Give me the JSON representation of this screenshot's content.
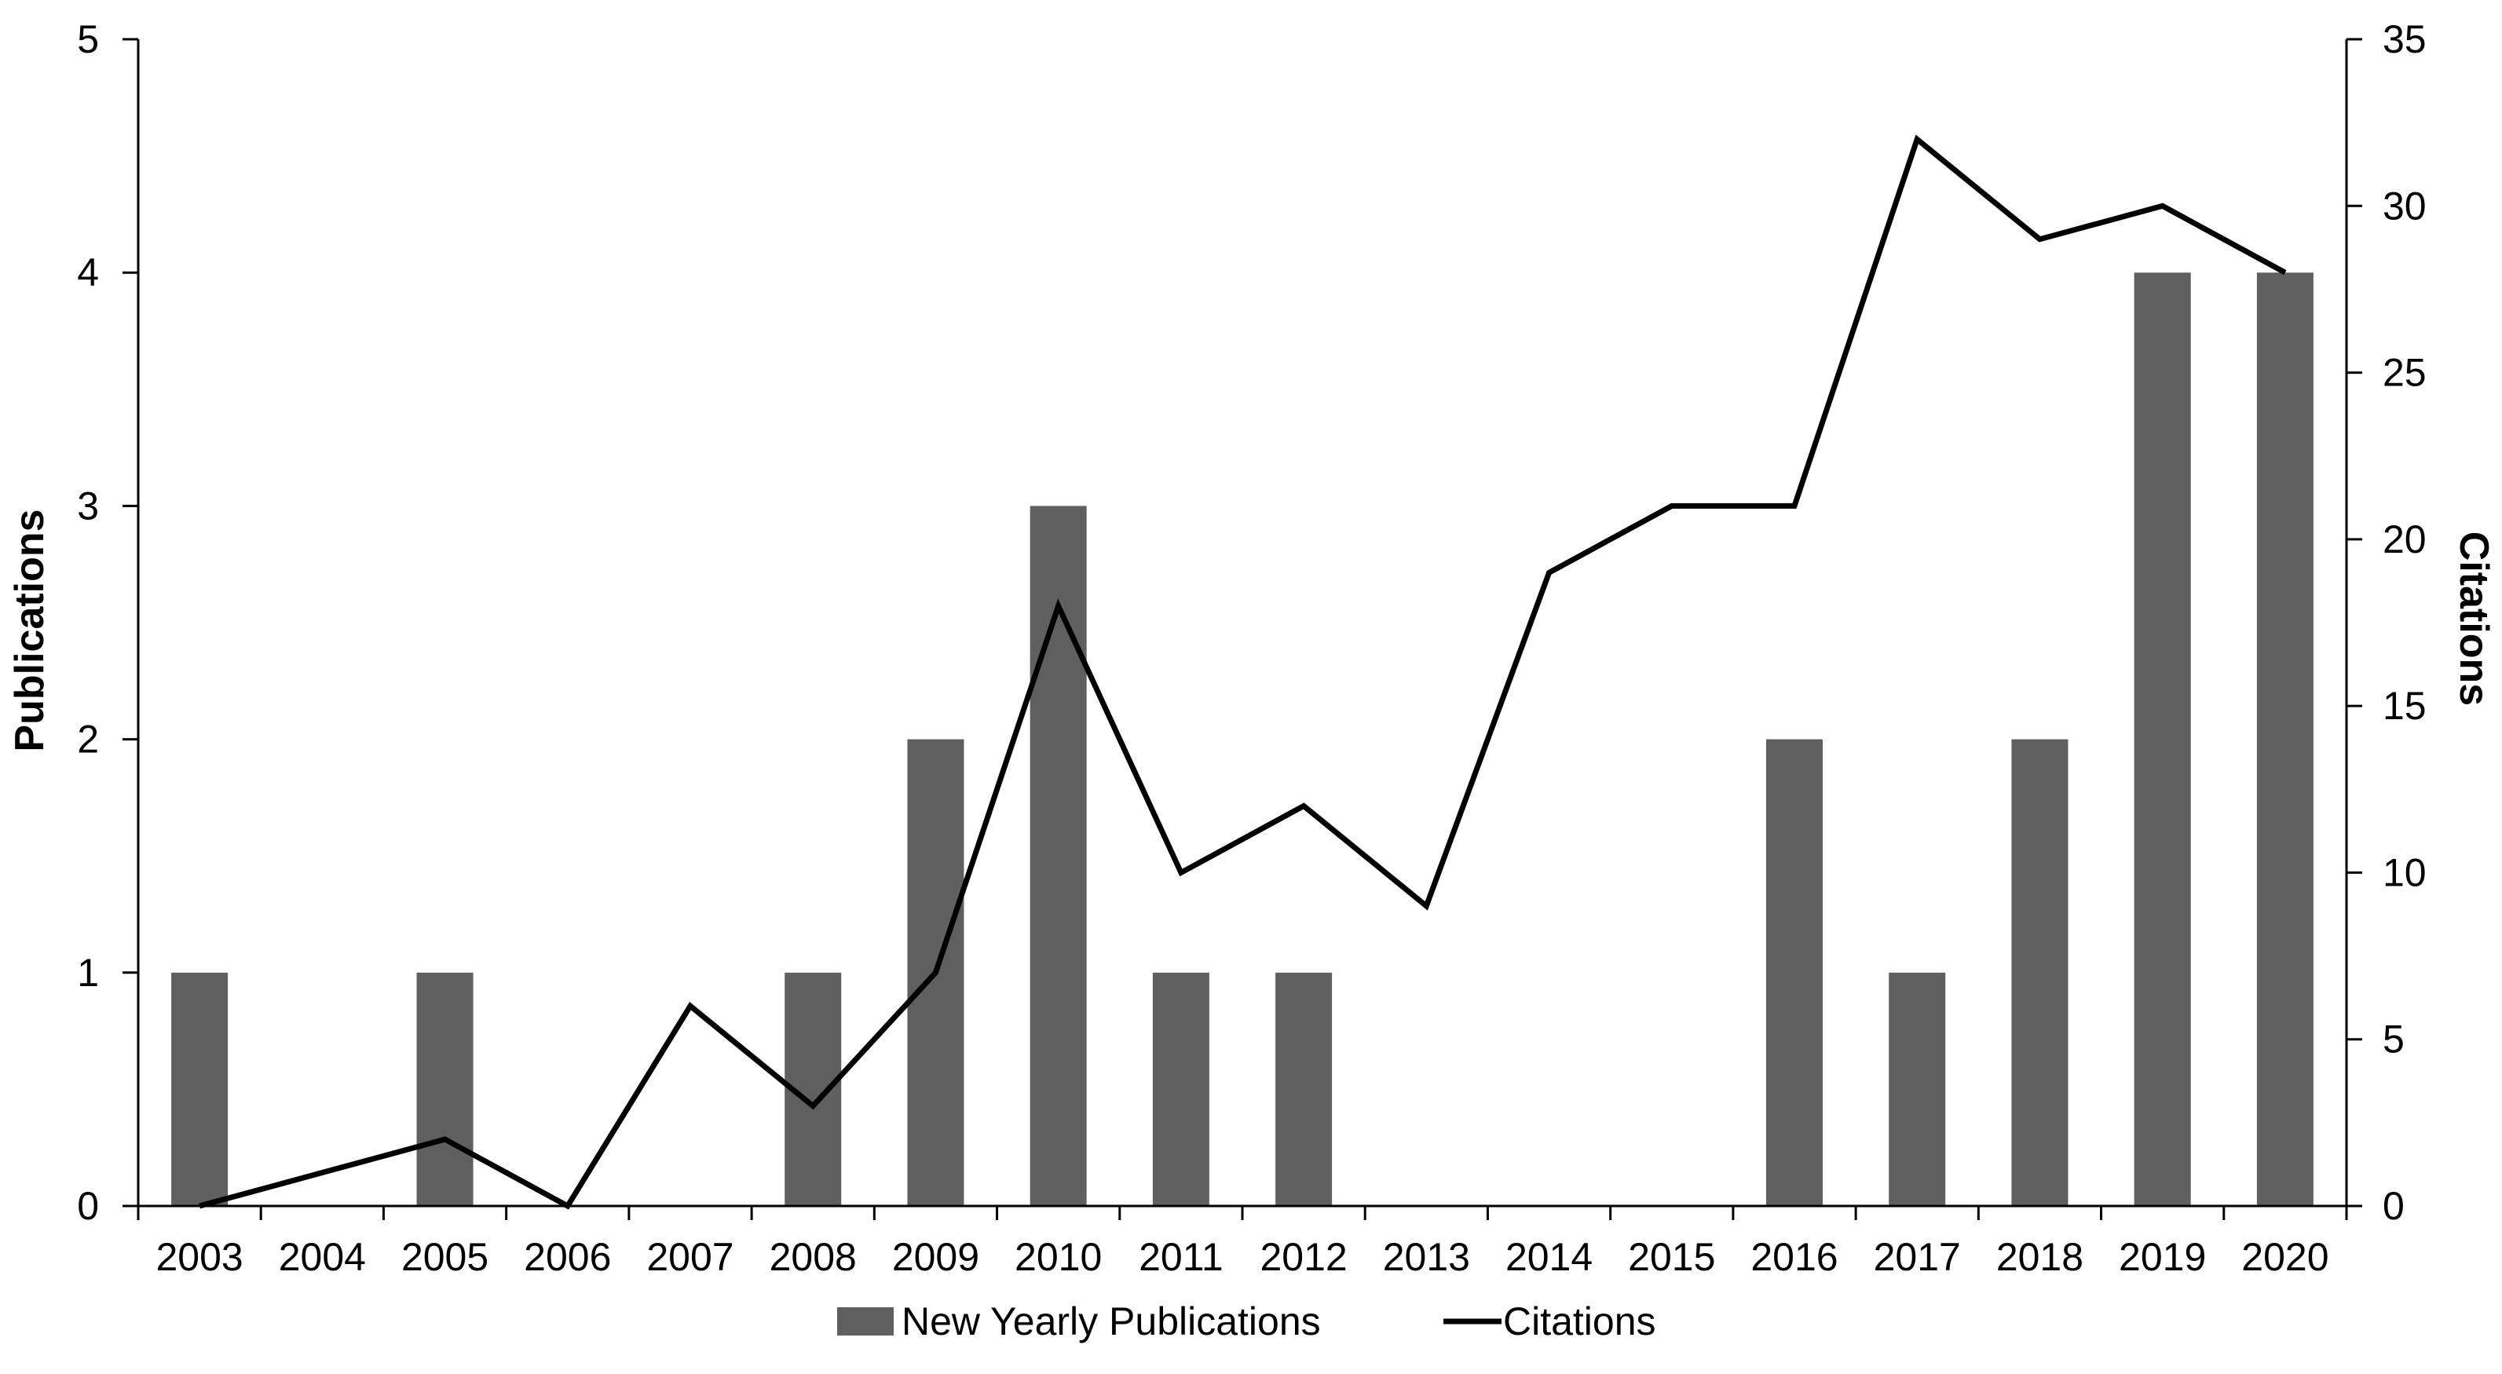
{
  "chart_data": {
    "type": "bar",
    "categories": [
      "2003",
      "2004",
      "2005",
      "2006",
      "2007",
      "2008",
      "2009",
      "2010",
      "2011",
      "2012",
      "2013",
      "2014",
      "2015",
      "2016",
      "2017",
      "2018",
      "2019",
      "2020"
    ],
    "series": [
      {
        "name": "New Yearly Publications",
        "type": "bar",
        "axis": "left",
        "color": "#5f5f5f",
        "values": [
          1,
          0,
          1,
          0,
          0,
          1,
          2,
          3,
          1,
          1,
          0,
          0,
          0,
          2,
          1,
          2,
          4,
          4
        ]
      },
      {
        "name": "Citations",
        "type": "line",
        "axis": "right",
        "color": "#000000",
        "values": [
          0,
          1,
          2,
          0,
          6,
          3,
          7,
          18,
          10,
          12,
          9,
          19,
          21,
          21,
          32,
          29,
          30,
          28
        ]
      }
    ],
    "ylabel": "Publications",
    "y2label": "Citations",
    "ylim": [
      0,
      5
    ],
    "y2lim": [
      0,
      35
    ],
    "yticks": [
      0,
      1,
      2,
      3,
      4,
      5
    ],
    "y2ticks": [
      0,
      5,
      10,
      15,
      20,
      25,
      30,
      35
    ],
    "grid": false,
    "legend_position": "bottom"
  }
}
